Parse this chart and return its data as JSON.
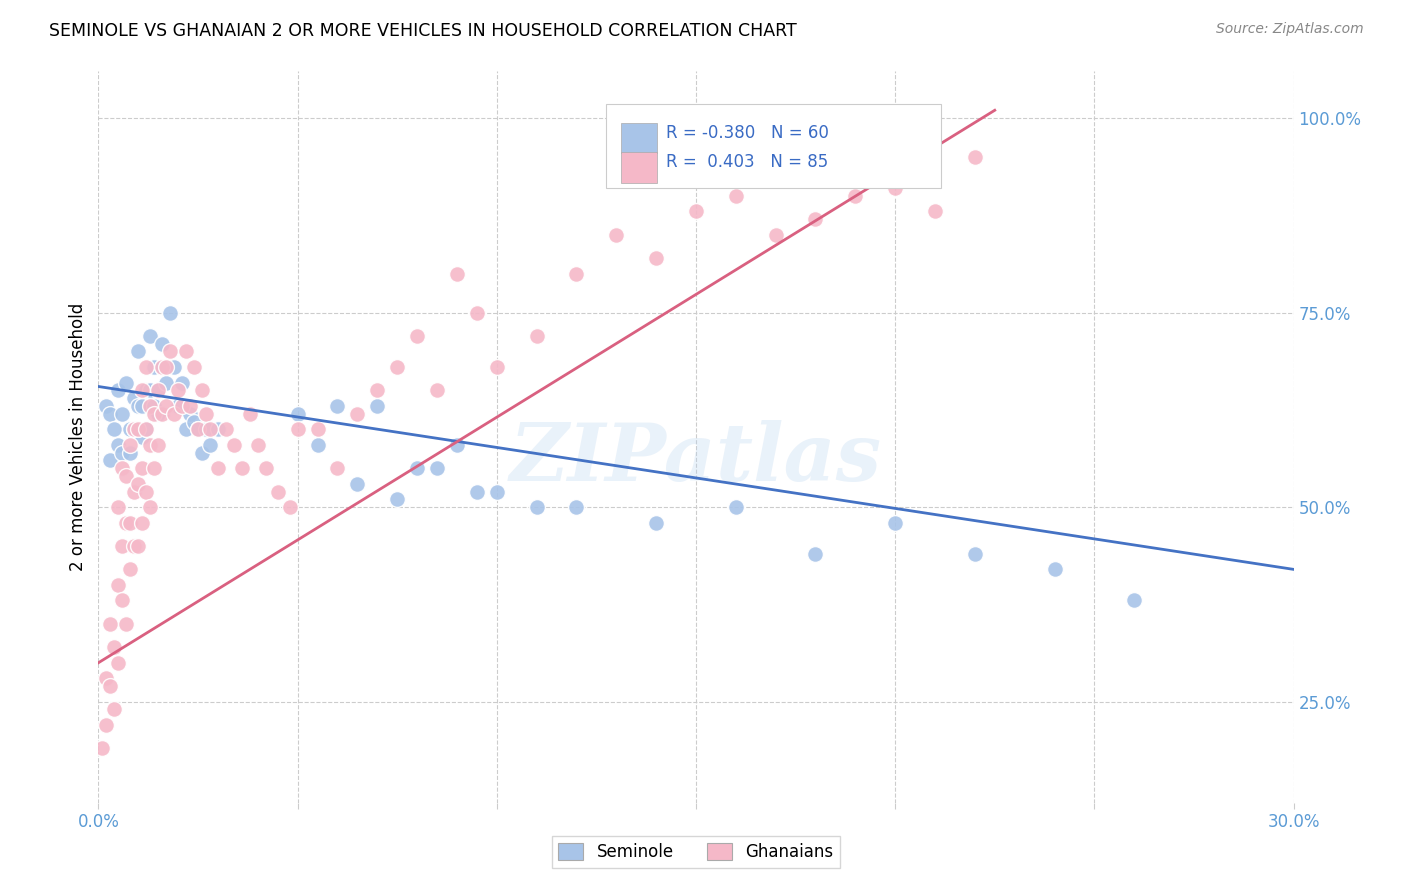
{
  "title": "SEMINOLE VS GHANAIAN 2 OR MORE VEHICLES IN HOUSEHOLD CORRELATION CHART",
  "source": "Source: ZipAtlas.com",
  "ylabel": "2 or more Vehicles in Household",
  "ytick_labels": [
    "25.0%",
    "50.0%",
    "75.0%",
    "100.0%"
  ],
  "ytick_values": [
    0.25,
    0.5,
    0.75,
    1.0
  ],
  "xmin": 0.0,
  "xmax": 0.3,
  "ymin": 0.12,
  "ymax": 1.06,
  "seminole_R": -0.38,
  "seminole_N": 60,
  "ghanaian_R": 0.403,
  "ghanaian_N": 85,
  "seminole_color": "#a8c4e8",
  "ghanaian_color": "#f5b8c8",
  "seminole_line_color": "#4472c4",
  "ghanaian_line_color": "#d96080",
  "watermark": "ZIPatlas",
  "seminole_line_x0": 0.0,
  "seminole_line_y0": 0.655,
  "seminole_line_x1": 0.3,
  "seminole_line_y1": 0.42,
  "ghanaian_line_x0": 0.0,
  "ghanaian_line_y0": 0.3,
  "ghanaian_line_x1": 0.225,
  "ghanaian_line_y1": 1.01,
  "seminole_x": [
    0.002,
    0.003,
    0.003,
    0.004,
    0.005,
    0.005,
    0.006,
    0.006,
    0.007,
    0.008,
    0.008,
    0.009,
    0.009,
    0.01,
    0.01,
    0.011,
    0.011,
    0.012,
    0.012,
    0.013,
    0.013,
    0.014,
    0.014,
    0.015,
    0.015,
    0.016,
    0.016,
    0.017,
    0.018,
    0.019,
    0.02,
    0.021,
    0.022,
    0.023,
    0.024,
    0.025,
    0.026,
    0.027,
    0.028,
    0.03,
    0.05,
    0.055,
    0.06,
    0.065,
    0.07,
    0.075,
    0.08,
    0.085,
    0.09,
    0.095,
    0.1,
    0.11,
    0.12,
    0.14,
    0.16,
    0.18,
    0.2,
    0.22,
    0.24,
    0.26
  ],
  "seminole_y": [
    0.63,
    0.62,
    0.56,
    0.6,
    0.65,
    0.58,
    0.62,
    0.57,
    0.66,
    0.6,
    0.57,
    0.64,
    0.6,
    0.63,
    0.7,
    0.63,
    0.59,
    0.65,
    0.6,
    0.72,
    0.65,
    0.68,
    0.63,
    0.65,
    0.62,
    0.68,
    0.71,
    0.66,
    0.75,
    0.68,
    0.63,
    0.66,
    0.6,
    0.62,
    0.61,
    0.6,
    0.57,
    0.6,
    0.58,
    0.6,
    0.62,
    0.58,
    0.63,
    0.53,
    0.63,
    0.51,
    0.55,
    0.55,
    0.58,
    0.52,
    0.52,
    0.5,
    0.5,
    0.48,
    0.5,
    0.44,
    0.48,
    0.44,
    0.42,
    0.38
  ],
  "ghanaian_x": [
    0.001,
    0.002,
    0.002,
    0.003,
    0.003,
    0.004,
    0.004,
    0.005,
    0.005,
    0.005,
    0.006,
    0.006,
    0.006,
    0.007,
    0.007,
    0.007,
    0.008,
    0.008,
    0.008,
    0.009,
    0.009,
    0.009,
    0.01,
    0.01,
    0.01,
    0.011,
    0.011,
    0.011,
    0.012,
    0.012,
    0.012,
    0.013,
    0.013,
    0.013,
    0.014,
    0.014,
    0.015,
    0.015,
    0.016,
    0.016,
    0.017,
    0.017,
    0.018,
    0.019,
    0.02,
    0.021,
    0.022,
    0.023,
    0.024,
    0.025,
    0.026,
    0.027,
    0.028,
    0.03,
    0.032,
    0.034,
    0.036,
    0.038,
    0.04,
    0.042,
    0.045,
    0.048,
    0.05,
    0.055,
    0.06,
    0.065,
    0.07,
    0.075,
    0.08,
    0.085,
    0.09,
    0.095,
    0.1,
    0.11,
    0.12,
    0.13,
    0.14,
    0.15,
    0.16,
    0.17,
    0.18,
    0.19,
    0.2,
    0.21,
    0.22
  ],
  "ghanaian_y": [
    0.19,
    0.22,
    0.28,
    0.35,
    0.27,
    0.24,
    0.32,
    0.5,
    0.4,
    0.3,
    0.38,
    0.55,
    0.45,
    0.54,
    0.48,
    0.35,
    0.58,
    0.48,
    0.42,
    0.6,
    0.52,
    0.45,
    0.6,
    0.53,
    0.45,
    0.65,
    0.55,
    0.48,
    0.6,
    0.68,
    0.52,
    0.63,
    0.58,
    0.5,
    0.62,
    0.55,
    0.65,
    0.58,
    0.68,
    0.62,
    0.63,
    0.68,
    0.7,
    0.62,
    0.65,
    0.63,
    0.7,
    0.63,
    0.68,
    0.6,
    0.65,
    0.62,
    0.6,
    0.55,
    0.6,
    0.58,
    0.55,
    0.62,
    0.58,
    0.55,
    0.52,
    0.5,
    0.6,
    0.6,
    0.55,
    0.62,
    0.65,
    0.68,
    0.72,
    0.65,
    0.8,
    0.75,
    0.68,
    0.72,
    0.8,
    0.85,
    0.82,
    0.88,
    0.9,
    0.85,
    0.87,
    0.9,
    0.91,
    0.88,
    0.95
  ]
}
